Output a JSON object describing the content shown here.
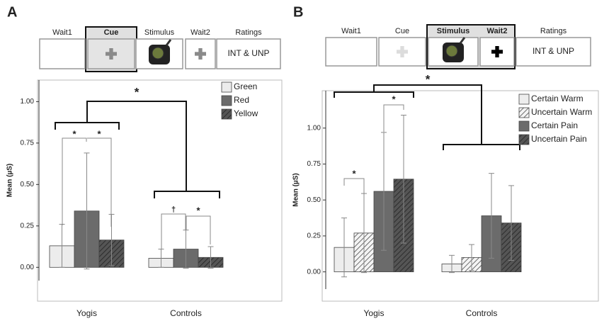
{
  "panel_labels": [
    "A",
    "B"
  ],
  "timeline": {
    "phases": [
      "Wait1",
      "Cue",
      "Stimulus",
      "Wait2",
      "Ratings"
    ],
    "rating_text": "INT & UNP"
  },
  "chart_data": [
    {
      "type": "bar",
      "y_label": "Mean (µS)",
      "categories": [
        "Yogis",
        "Controls"
      ],
      "series": [
        {
          "name": "Green",
          "color": "#ececec",
          "hatch": false,
          "values": [
            0.13,
            0.055
          ],
          "errors": [
            0.13,
            0.055
          ]
        },
        {
          "name": "Red",
          "color": "#6b6b6b",
          "hatch": false,
          "values": [
            0.34,
            0.11
          ],
          "errors": [
            0.35,
            0.115
          ]
        },
        {
          "name": "Yellow",
          "color": "#555555",
          "hatch": true,
          "values": [
            0.165,
            0.06
          ],
          "errors": [
            0.155,
            0.065
          ]
        }
      ],
      "ylim": [
        -0.08,
        1.13
      ],
      "yticks": [
        {
          "value": 0,
          "label": "0.00"
        },
        {
          "value": 0.25,
          "label": "0.25"
        },
        {
          "value": 0.5,
          "label": "0.50"
        },
        {
          "value": 0.75,
          "label": "0.75"
        },
        {
          "value": 1,
          "label": "1.00"
        }
      ],
      "grid": false,
      "legend": "upper right",
      "annotations": [
        "*",
        "*",
        "*",
        "†",
        "*"
      ]
    },
    {
      "type": "bar",
      "y_label": "Mean (µS)",
      "categories": [
        "Yogis",
        "Controls"
      ],
      "series": [
        {
          "name": "Certain Warm",
          "color": "#ededed",
          "hatch": false,
          "values": [
            0.17,
            0.055
          ],
          "errors": [
            0.205,
            0.06
          ]
        },
        {
          "name": "Uncertain Warm",
          "color": "#f4f4f4",
          "hatch": true,
          "values": [
            0.27,
            0.1
          ],
          "errors": [
            0.275,
            0.09
          ]
        },
        {
          "name": "Certain Pain",
          "color": "#6b6b6b",
          "hatch": false,
          "values": [
            0.56,
            0.39
          ],
          "errors": [
            0.41,
            0.295
          ]
        },
        {
          "name": "Uncertain Pain",
          "color": "#555555",
          "hatch": true,
          "values": [
            0.645,
            0.34
          ],
          "errors": [
            0.445,
            0.26
          ]
        }
      ],
      "ylim": [
        -0.12,
        1.26
      ],
      "yticks": [
        {
          "value": 0,
          "label": "0.00"
        },
        {
          "value": 0.25,
          "label": "0.25"
        },
        {
          "value": 0.5,
          "label": "0.50"
        },
        {
          "value": 0.75,
          "label": "0.75"
        },
        {
          "value": 1,
          "label": "1.00"
        }
      ],
      "grid": false,
      "legend": "upper right",
      "annotations": [
        "*",
        "*",
        "*"
      ]
    }
  ]
}
